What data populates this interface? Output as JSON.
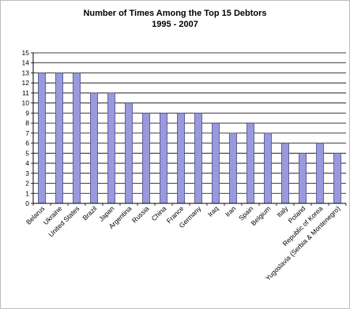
{
  "chart_data": {
    "type": "bar",
    "title": "Number of Times Among the Top 15 Debtors",
    "subtitle": "1995 - 2007",
    "categories": [
      "Belarus",
      "Ukraine",
      "United States",
      "Brazil",
      "Japan",
      "Argentina",
      "Russia",
      "China",
      "France",
      "Germany",
      "Iraq",
      "Iran",
      "Spain",
      "Belgium",
      "Italy",
      "Poland",
      "Republic of Korea",
      "Yugoslavia (Serbia & Montenegro)"
    ],
    "values": [
      13,
      13,
      13,
      11,
      11,
      10,
      9,
      9,
      9,
      9,
      8,
      7,
      8,
      7,
      6,
      5,
      6,
      5
    ],
    "ylim": [
      0,
      15
    ],
    "yticks": [
      "0",
      "1",
      "2",
      "3",
      "4",
      "5",
      "6",
      "7",
      "8",
      "9",
      "10",
      "11",
      "12",
      "13",
      "14",
      "15"
    ],
    "grid": true,
    "legend": "none",
    "bar_color": "#9999dd",
    "bar_edge_color": "#333366"
  }
}
